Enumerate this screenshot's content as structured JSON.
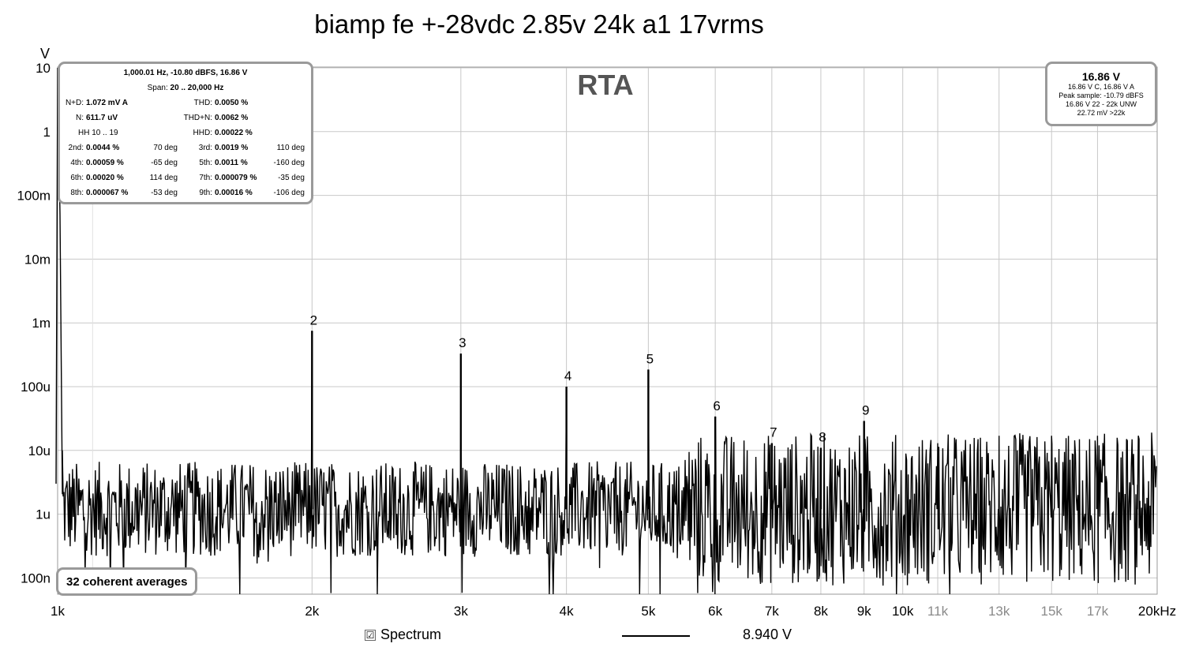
{
  "title": "biamp fe +-28vdc 2.85v 24k a1 17vrms",
  "chart_data": {
    "type": "line",
    "watermark": "RTA",
    "ylabel": "V",
    "y_scale": "log",
    "x_scale": "log",
    "ylim": [
      5e-08,
      12
    ],
    "xlim": [
      1000,
      20000
    ],
    "grid": true,
    "y_ticks": [
      {
        "value": 10,
        "label": "10"
      },
      {
        "value": 1,
        "label": "1"
      },
      {
        "value": 0.1,
        "label": "100m"
      },
      {
        "value": 0.01,
        "label": "10m"
      },
      {
        "value": 0.001,
        "label": "1m"
      },
      {
        "value": 0.0001,
        "label": "100u"
      },
      {
        "value": 1e-05,
        "label": "10u"
      },
      {
        "value": 1e-06,
        "label": "1u"
      },
      {
        "value": 1e-07,
        "label": "100n"
      }
    ],
    "x_ticks": [
      {
        "value": 1000,
        "label": "1k",
        "dim": false
      },
      {
        "value": 2000,
        "label": "2k",
        "dim": false
      },
      {
        "value": 3000,
        "label": "3k",
        "dim": false
      },
      {
        "value": 4000,
        "label": "4k",
        "dim": false
      },
      {
        "value": 5000,
        "label": "5k",
        "dim": false
      },
      {
        "value": 6000,
        "label": "6k",
        "dim": false
      },
      {
        "value": 7000,
        "label": "7k",
        "dim": false
      },
      {
        "value": 8000,
        "label": "8k",
        "dim": false
      },
      {
        "value": 9000,
        "label": "9k",
        "dim": false
      },
      {
        "value": 10000,
        "label": "10k",
        "dim": false
      },
      {
        "value": 11000,
        "label": "11k",
        "dim": true
      },
      {
        "value": 13000,
        "label": "13k",
        "dim": true
      },
      {
        "value": 15000,
        "label": "15k",
        "dim": true
      },
      {
        "value": 17000,
        "label": "17k",
        "dim": true
      },
      {
        "value": 20000,
        "label": "20kHz",
        "dim": false
      }
    ],
    "fundamental": {
      "freq": 1000,
      "value": 10
    },
    "harmonics": [
      {
        "label": "2",
        "freq": 2000,
        "value": 0.00075
      },
      {
        "label": "3",
        "freq": 3000,
        "value": 0.00033
      },
      {
        "label": "4",
        "freq": 4000,
        "value": 0.0001
      },
      {
        "label": "5",
        "freq": 5000,
        "value": 0.000185
      },
      {
        "label": "6",
        "freq": 6000,
        "value": 3.4e-05
      },
      {
        "label": "7",
        "freq": 7000,
        "value": 1.3e-05
      },
      {
        "label": "8",
        "freq": 8000,
        "value": 1.1e-05
      },
      {
        "label": "9",
        "freq": 9000,
        "value": 2.9e-05
      }
    ],
    "spurs": [
      {
        "freq": 11000,
        "value": 1.3e-05
      },
      {
        "freq": 13000,
        "value": 1.7e-05
      },
      {
        "freq": 15000,
        "value": 1.7e-05
      },
      {
        "freq": 17000,
        "value": 1.7e-05
      },
      {
        "freq": 19000,
        "value": 1.7e-05
      }
    ],
    "noise_floor": 1.2e-06,
    "series": [
      {
        "name": "Spectrum",
        "value_label": "8.940 V",
        "color": "#000000"
      }
    ]
  },
  "stats": {
    "header1": "1,000.01 Hz, -10.80 dBFS, 16.86 V",
    "header2_label": "Span:",
    "header2_value": "20 .. 20,000 Hz",
    "rows": [
      {
        "l1": "N+D:",
        "v1": "1.072 mV A",
        "p1": "",
        "l2": "THD:",
        "v2": "0.0050 %",
        "p2": ""
      },
      {
        "l1": "N:",
        "v1": "611.7 uV",
        "p1": "",
        "l2": "THD+N:",
        "v2": "0.0062 %",
        "p2": ""
      },
      {
        "l1": "",
        "v1": "",
        "p1": "",
        "l2": "HHD:",
        "v2": "0.00022 %",
        "p2": ""
      },
      {
        "l1": "2nd:",
        "v1": "0.0044 %",
        "p1": "70 deg",
        "l2": "3rd:",
        "v2": "0.0019 %",
        "p2": "110 deg"
      },
      {
        "l1": "4th:",
        "v1": "0.00059 %",
        "p1": "-65 deg",
        "l2": "5th:",
        "v2": "0.0011 %",
        "p2": "-160 deg"
      },
      {
        "l1": "6th:",
        "v1": "0.00020 %",
        "p1": "114 deg",
        "l2": "7th:",
        "v2": "0.000079 %",
        "p2": "-35 deg"
      },
      {
        "l1": "8th:",
        "v1": "0.000067 %",
        "p1": "-53 deg",
        "l2": "9th:",
        "v2": "0.00016 %",
        "p2": "-106 deg"
      }
    ],
    "hh_label": "HH 10 .. 19"
  },
  "reading": {
    "value": "16.86 V",
    "lines": [
      "16.86 V C, 16.86 V A",
      "Peak sample: -10.79 dBFS",
      "16.86 V 22 - 22k UNW",
      "22.72 mV >22k"
    ]
  },
  "averages_label": "32 coherent averages",
  "legend": {
    "checked": true,
    "check_glyph": "☑"
  }
}
